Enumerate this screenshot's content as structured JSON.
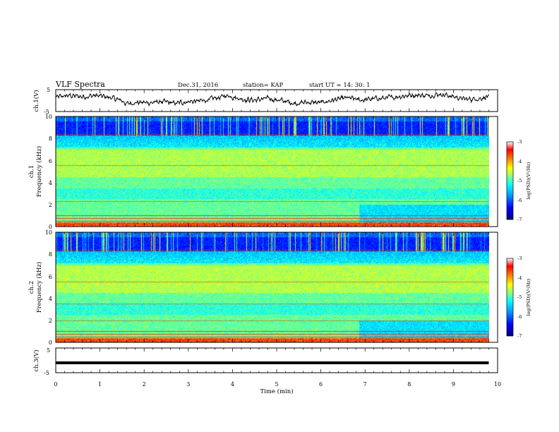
{
  "header": {
    "title": "VLF Spectra",
    "date": "Dec.31, 2016",
    "station": "station= KAP",
    "start": "start  UT  =   14: 30: 1"
  },
  "colors": {
    "trace": "#000000",
    "colormap": [
      "#000080",
      "#0000ff",
      "#00a0ff",
      "#00ffff",
      "#80ff80",
      "#ffff00",
      "#ff8000",
      "#ff0000",
      "#ffffff"
    ]
  },
  "chart_data": [
    {
      "type": "line",
      "name": "ch1-waveform",
      "ylabel": "ch.1(V)",
      "xlim": [
        0,
        10
      ],
      "ylim": [
        -5,
        5
      ],
      "y_ticks": [
        "5",
        "-5"
      ],
      "x_end": 9.8,
      "trend": {
        "x": [
          0,
          0.3,
          0.6,
          0.9,
          1.2,
          1.5,
          1.6,
          1.8,
          2.1,
          2.4,
          2.7,
          3.0,
          3.3,
          3.6,
          3.9,
          4.2,
          4.5,
          4.8,
          5.1,
          5.4,
          5.7,
          6.0,
          6.3,
          6.6,
          6.9,
          7.2,
          7.5,
          7.8,
          8.1,
          8.4,
          8.7,
          9.0,
          9.3,
          9.6,
          9.8
        ],
        "y": [
          1.5,
          2.3,
          1.8,
          2.3,
          1.5,
          0.0,
          -1.5,
          -0.8,
          -1.0,
          -0.5,
          -1.3,
          -0.4,
          -0.2,
          1.0,
          2.4,
          0.7,
          0.2,
          1.0,
          0.0,
          -1.2,
          -0.8,
          -1.0,
          0.3,
          1.2,
          0.2,
          0.8,
          1.2,
          2.0,
          2.6,
          2.3,
          3.0,
          1.8,
          0.5,
          1.0,
          2.0
        ]
      }
    },
    {
      "type": "heatmap",
      "name": "ch1-spectrogram",
      "ylabel": "ch.1",
      "ylabel2": "Frequency  (kHz)",
      "xlim": [
        0,
        10
      ],
      "ylim": [
        0,
        10
      ],
      "y_ticks": [
        "0",
        "2",
        "4",
        "6",
        "8",
        "10"
      ],
      "data_x_end": 9.8,
      "colorbar": {
        "label": "log(PSD)(V²/Hz)",
        "range": [
          -7,
          -3
        ],
        "ticks": [
          "-3",
          "-4",
          "-5",
          "-6",
          "-7"
        ]
      },
      "lines_khz": [
        0.25,
        0.5,
        0.75,
        1.0,
        2.3,
        5.6,
        8.4
      ]
    },
    {
      "type": "heatmap",
      "name": "ch2-spectrogram",
      "ylabel": "ch.2",
      "ylabel2": "Frequency  (kHz)",
      "xlim": [
        0,
        10
      ],
      "ylim": [
        0,
        10
      ],
      "y_ticks": [
        "0",
        "2",
        "4",
        "6",
        "8",
        "10"
      ],
      "data_x_end": 9.8,
      "colorbar": {
        "label": "log(PSD)(V²/Hz)",
        "range": [
          -7,
          -3
        ],
        "ticks": [
          "-3",
          "-4",
          "-5",
          "-6",
          "-7"
        ]
      },
      "lines_khz": [
        0.25,
        0.5,
        0.75,
        1.0,
        2.0,
        3.5,
        5.5,
        8.4
      ]
    },
    {
      "type": "line",
      "name": "ch3-waveform",
      "ylabel": "ch.3(V)",
      "xlabel": "Time  (min)",
      "xlim": [
        0,
        10
      ],
      "ylim": [
        -5,
        5
      ],
      "y_ticks": [
        "5",
        "-5"
      ],
      "x_ticks": [
        "0",
        "1",
        "2",
        "3",
        "4",
        "5",
        "6",
        "7",
        "8",
        "9",
        "10"
      ],
      "x_end": 9.8,
      "trend": {
        "x": [
          0,
          9.8
        ],
        "y": [
          -1,
          -1
        ]
      }
    }
  ]
}
